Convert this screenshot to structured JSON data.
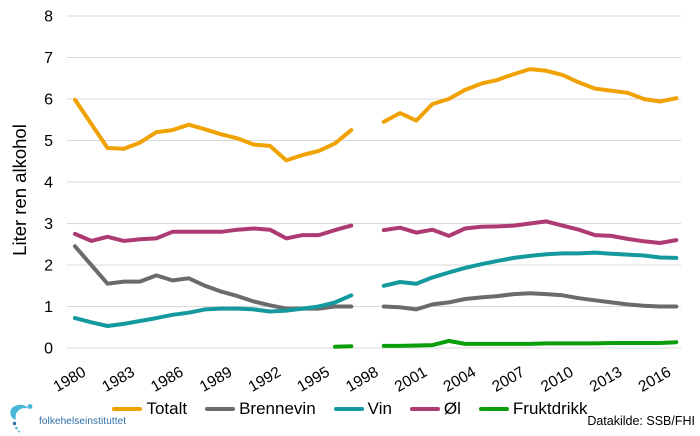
{
  "chart_data": {
    "type": "line",
    "title": "",
    "ylabel": "Liter ren alkohol",
    "xlabel": "",
    "ylim": [
      0,
      8
    ],
    "yticks": [
      0,
      1,
      2,
      3,
      4,
      5,
      6,
      7,
      8
    ],
    "xtick_labels": [
      "1980",
      "1983",
      "1986",
      "1989",
      "1992",
      "1995",
      "1998",
      "2001",
      "2004",
      "2007",
      "2010",
      "2013",
      "2016"
    ],
    "xlim": [
      1979.5,
      2017.5
    ],
    "grid": "horizontal",
    "gridline_color": "#D8D8D8",
    "legend_position": "bottom",
    "data_gap_note": "All lines are broken between 1997 and 1999 (no data plotted for 1998)",
    "series": [
      {
        "name": "Totalt",
        "color": "#F0A202",
        "segments": [
          {
            "x": [
              1980,
              1981,
              1982,
              1983,
              1984,
              1985,
              1986,
              1987,
              1988,
              1989,
              1990,
              1991,
              1992,
              1993,
              1994,
              1995,
              1996,
              1997
            ],
            "y": [
              5.98,
              5.4,
              4.82,
              4.8,
              4.95,
              5.2,
              5.25,
              5.38,
              5.27,
              5.15,
              5.05,
              4.9,
              4.87,
              4.52,
              4.65,
              4.75,
              4.93,
              5.25
            ]
          },
          {
            "x": [
              1999,
              2000,
              2001,
              2002,
              2003,
              2004,
              2005,
              2006,
              2007,
              2008,
              2009,
              2010,
              2011,
              2012,
              2013,
              2014,
              2015,
              2016,
              2017
            ],
            "y": [
              5.45,
              5.66,
              5.48,
              5.88,
              6.0,
              6.22,
              6.37,
              6.46,
              6.6,
              6.72,
              6.68,
              6.58,
              6.4,
              6.25,
              6.2,
              6.15,
              6.0,
              5.94,
              6.02
            ]
          }
        ]
      },
      {
        "name": "Brennevin",
        "color": "#6B6B6B",
        "segments": [
          {
            "x": [
              1980,
              1981,
              1982,
              1983,
              1984,
              1985,
              1986,
              1987,
              1988,
              1989,
              1990,
              1991,
              1992,
              1993,
              1994,
              1995,
              1996,
              1997
            ],
            "y": [
              2.45,
              2.0,
              1.55,
              1.6,
              1.6,
              1.75,
              1.63,
              1.68,
              1.5,
              1.36,
              1.25,
              1.12,
              1.03,
              0.95,
              0.95,
              0.95,
              1.0,
              1.0
            ]
          },
          {
            "x": [
              1999,
              2000,
              2001,
              2002,
              2003,
              2004,
              2005,
              2006,
              2007,
              2008,
              2009,
              2010,
              2011,
              2012,
              2013,
              2014,
              2015,
              2016,
              2017
            ],
            "y": [
              1.0,
              0.98,
              0.93,
              1.05,
              1.1,
              1.18,
              1.22,
              1.25,
              1.3,
              1.32,
              1.3,
              1.27,
              1.2,
              1.15,
              1.1,
              1.05,
              1.02,
              1.0,
              1.0
            ]
          }
        ]
      },
      {
        "name": "Vin",
        "color": "#14999E",
        "segments": [
          {
            "x": [
              1980,
              1981,
              1982,
              1983,
              1984,
              1985,
              1986,
              1987,
              1988,
              1989,
              1990,
              1991,
              1992,
              1993,
              1994,
              1995,
              1996,
              1997
            ],
            "y": [
              0.72,
              0.62,
              0.53,
              0.58,
              0.65,
              0.72,
              0.8,
              0.85,
              0.93,
              0.95,
              0.95,
              0.93,
              0.88,
              0.9,
              0.95,
              1.0,
              1.1,
              1.27
            ]
          },
          {
            "x": [
              1999,
              2000,
              2001,
              2002,
              2003,
              2004,
              2005,
              2006,
              2007,
              2008,
              2009,
              2010,
              2011,
              2012,
              2013,
              2014,
              2015,
              2016,
              2017
            ],
            "y": [
              1.5,
              1.59,
              1.55,
              1.7,
              1.82,
              1.93,
              2.02,
              2.1,
              2.17,
              2.22,
              2.26,
              2.28,
              2.28,
              2.3,
              2.27,
              2.25,
              2.23,
              2.18,
              2.17
            ]
          }
        ]
      },
      {
        "name": "Øl",
        "color": "#AE3A74",
        "segments": [
          {
            "x": [
              1980,
              1981,
              1982,
              1983,
              1984,
              1985,
              1986,
              1987,
              1988,
              1989,
              1990,
              1991,
              1992,
              1993,
              1994,
              1995,
              1996,
              1997
            ],
            "y": [
              2.75,
              2.58,
              2.68,
              2.58,
              2.62,
              2.64,
              2.8,
              2.8,
              2.8,
              2.8,
              2.85,
              2.88,
              2.85,
              2.64,
              2.72,
              2.72,
              2.84,
              2.95
            ]
          },
          {
            "x": [
              1999,
              2000,
              2001,
              2002,
              2003,
              2004,
              2005,
              2006,
              2007,
              2008,
              2009,
              2010,
              2011,
              2012,
              2013,
              2014,
              2015,
              2016,
              2017
            ],
            "y": [
              2.84,
              2.9,
              2.78,
              2.85,
              2.7,
              2.88,
              2.92,
              2.93,
              2.95,
              3.0,
              3.05,
              2.95,
              2.85,
              2.72,
              2.7,
              2.63,
              2.57,
              2.53,
              2.6
            ]
          }
        ]
      },
      {
        "name": "Fruktdrikk",
        "color": "#0B9E0B",
        "segments": [
          {
            "x": [
              1996,
              1997
            ],
            "y": [
              0.03,
              0.04
            ]
          },
          {
            "x": [
              1999,
              2000,
              2001,
              2002,
              2003,
              2004,
              2005,
              2006,
              2007,
              2008,
              2009,
              2010,
              2011,
              2012,
              2013,
              2014,
              2015,
              2016,
              2017
            ],
            "y": [
              0.05,
              0.05,
              0.06,
              0.07,
              0.17,
              0.1,
              0.1,
              0.1,
              0.1,
              0.1,
              0.11,
              0.11,
              0.11,
              0.11,
              0.12,
              0.12,
              0.12,
              0.12,
              0.14
            ]
          }
        ]
      }
    ]
  },
  "footer": {
    "logo_text": "folkehelseinstituttet",
    "source_label": "Datakilde: SSB/FHI"
  }
}
